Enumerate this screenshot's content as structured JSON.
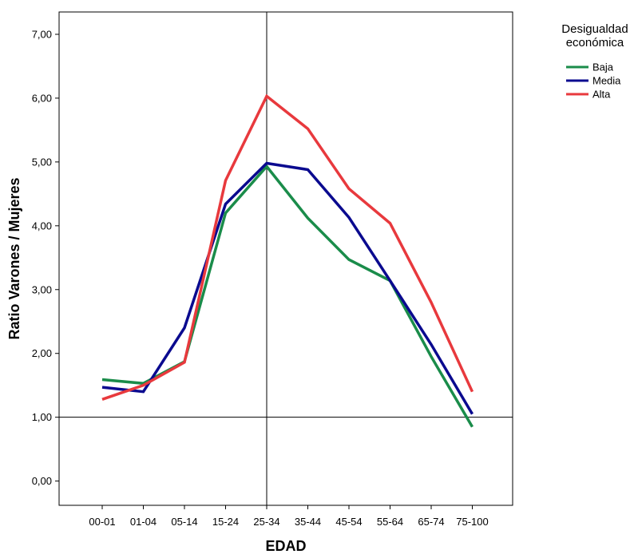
{
  "chart_data": {
    "type": "line",
    "title": "",
    "xlabel": "EDAD",
    "ylabel": "Ratio Varones / Mujeres",
    "categories": [
      "00-01",
      "01-04",
      "05-14",
      "15-24",
      "25-34",
      "35-44",
      "45-54",
      "55-64",
      "65-74",
      "75-100"
    ],
    "yticks": [
      "0,00",
      "1,00",
      "2,00",
      "3,00",
      "4,00",
      "5,00",
      "6,00",
      "7,00"
    ],
    "ylim": [
      -0.38,
      7.35
    ],
    "reference_lines": {
      "horizontal_y": 1.0,
      "vertical_category": "25-34"
    },
    "grid": false,
    "legend": {
      "title_lines": [
        "Desigualdad",
        "económica"
      ],
      "placement": "right"
    },
    "series": [
      {
        "name": "Baja",
        "color": "#1a8c4a",
        "values": [
          1.59,
          1.53,
          1.87,
          4.2,
          4.93,
          4.12,
          3.47,
          3.14,
          1.95,
          0.85
        ]
      },
      {
        "name": "Media",
        "color": "#0a0a8f",
        "values": [
          1.47,
          1.4,
          2.4,
          4.34,
          4.98,
          4.88,
          4.13,
          3.14,
          2.14,
          1.05
        ]
      },
      {
        "name": "Alta",
        "color": "#e8393d",
        "values": [
          1.28,
          1.5,
          1.86,
          4.71,
          6.03,
          5.52,
          4.58,
          4.04,
          2.8,
          1.4
        ]
      }
    ]
  }
}
